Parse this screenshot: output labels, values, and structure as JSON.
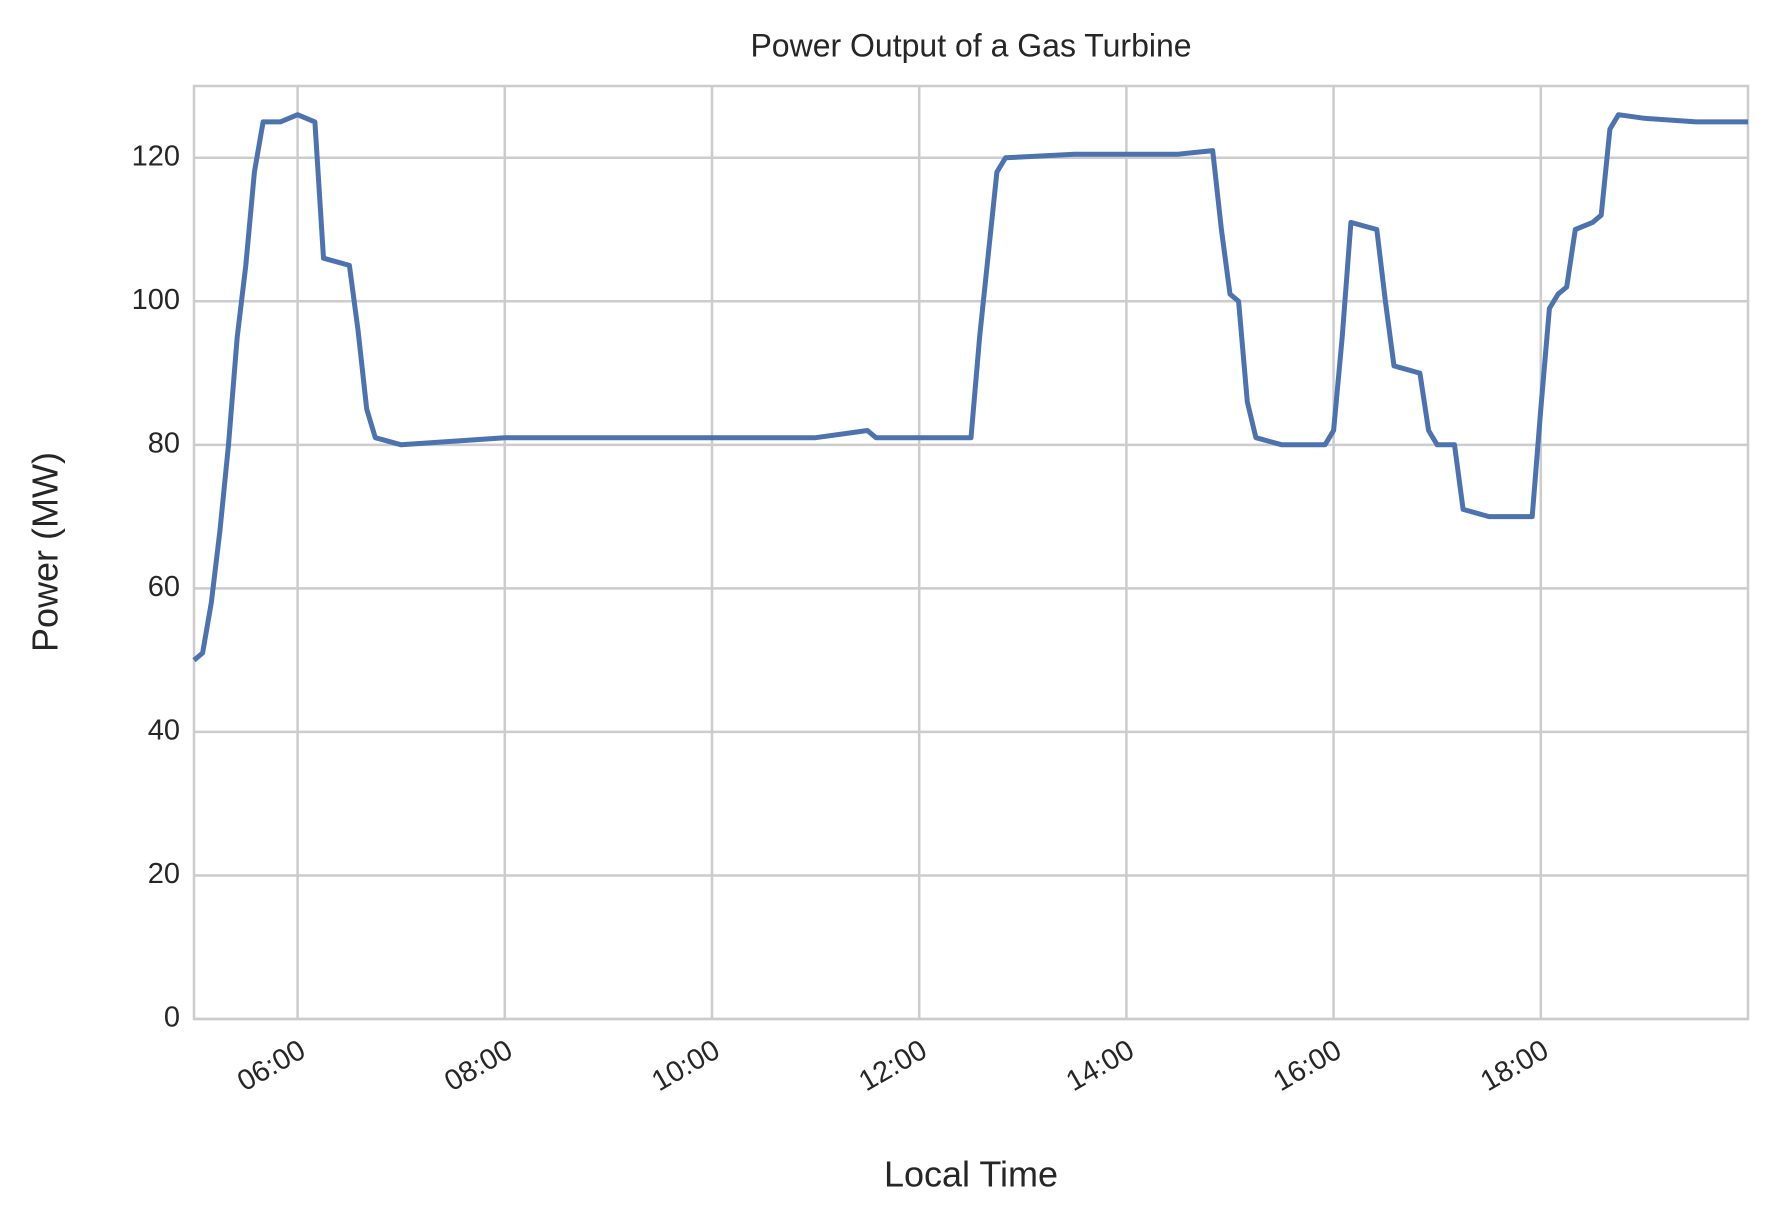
{
  "chart_data": {
    "type": "line",
    "title": "Power Output of a Gas Turbine",
    "x_label": "Local Time",
    "y_label": "Power (MW)",
    "x": [
      "05:00",
      "05:05",
      "05:10",
      "05:15",
      "05:20",
      "05:25",
      "05:30",
      "05:35",
      "05:40",
      "05:50",
      "06:00",
      "06:10",
      "06:15",
      "06:30",
      "06:35",
      "06:40",
      "06:45",
      "07:00",
      "07:30",
      "08:00",
      "08:30",
      "09:00",
      "09:30",
      "10:00",
      "10:30",
      "11:00",
      "11:30",
      "11:35",
      "12:00",
      "12:25",
      "12:30",
      "12:35",
      "12:45",
      "12:50",
      "13:30",
      "14:00",
      "14:30",
      "14:50",
      "14:55",
      "15:00",
      "15:05",
      "15:10",
      "15:15",
      "15:30",
      "15:55",
      "16:00",
      "16:05",
      "16:10",
      "16:25",
      "16:30",
      "16:35",
      "16:50",
      "16:55",
      "17:00",
      "17:10",
      "17:15",
      "17:30",
      "17:55",
      "18:00",
      "18:05",
      "18:10",
      "18:15",
      "18:20",
      "18:30",
      "18:35",
      "18:40",
      "18:45",
      "19:00",
      "19:30",
      "20:00"
    ],
    "series": [
      {
        "name": "Power",
        "color": "#4c72b0",
        "values": [
          50,
          51,
          58,
          68,
          80,
          95,
          105,
          118,
          125,
          125,
          126,
          125,
          106,
          105,
          96,
          85,
          81,
          80,
          80.5,
          81,
          81,
          81,
          81,
          81,
          81,
          81,
          82,
          81,
          81,
          81,
          81,
          95,
          118,
          120,
          120.5,
          120.5,
          120.5,
          121,
          110,
          101,
          100,
          86,
          81,
          80,
          80,
          82,
          95,
          111,
          110,
          100,
          91,
          90,
          82,
          80,
          80,
          71,
          70,
          70,
          85,
          99,
          101,
          102,
          110,
          111,
          112,
          124,
          126,
          125.5,
          125,
          125
        ]
      }
    ],
    "xlim": [
      "05:00",
      "20:00"
    ],
    "xticks": [
      "06:00",
      "08:00",
      "10:00",
      "12:00",
      "14:00",
      "16:00",
      "18:00"
    ],
    "ylim": [
      0,
      130
    ],
    "yticks": [
      0,
      20,
      40,
      60,
      80,
      100,
      120
    ],
    "grid": true
  }
}
